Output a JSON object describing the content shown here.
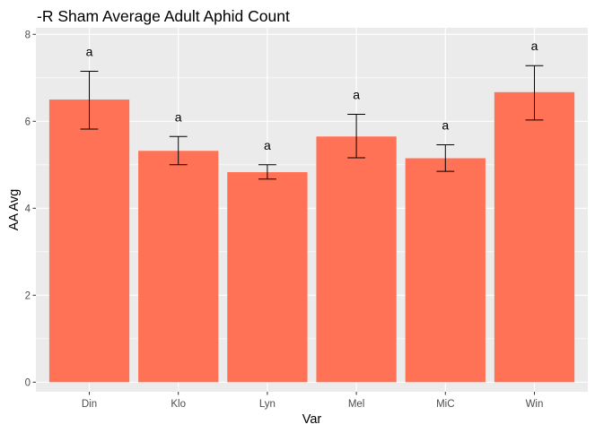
{
  "chart_data": {
    "type": "bar",
    "title": "-R Sham Average Adult Aphid Count",
    "xlabel": "Var",
    "ylabel": "AA Avg",
    "categories": [
      "Din",
      "Klo",
      "Lyn",
      "Mel",
      "MiC",
      "Win"
    ],
    "values": [
      6.5,
      5.32,
      4.83,
      5.65,
      5.15,
      6.67
    ],
    "error_low": [
      5.82,
      5.0,
      4.67,
      5.16,
      4.85,
      6.03
    ],
    "error_high": [
      7.15,
      5.65,
      5.0,
      6.16,
      5.46,
      7.28
    ],
    "sig_labels": [
      "a",
      "a",
      "a",
      "a",
      "a",
      "a"
    ],
    "ylim": [
      -0.22,
      8.15
    ],
    "yticks": [
      0,
      2,
      4,
      6,
      8
    ],
    "grid": true,
    "legend": "none",
    "colors": {
      "bar": "#ff7256",
      "panel": "#ebebeb",
      "grid": "#ffffff",
      "error_bar": "#000000"
    }
  }
}
